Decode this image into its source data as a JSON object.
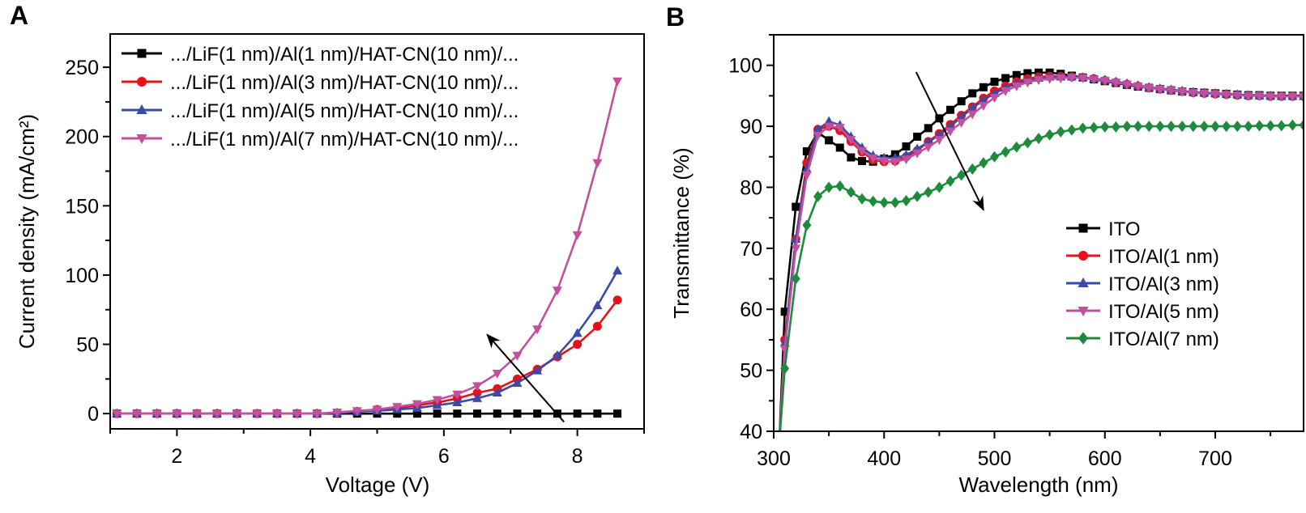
{
  "chart_data": [
    {
      "panel_label": "A",
      "type": "line",
      "xlabel": "Voltage (V)",
      "ylabel": "Current density (mA/cm²)",
      "xlim": [
        1,
        9
      ],
      "ylim": [
        -11,
        274
      ],
      "xticks": [
        2,
        4,
        6,
        8
      ],
      "yticks": [
        0,
        50,
        100,
        150,
        200,
        250
      ],
      "grid": false,
      "legend_position": "top-left",
      "x": [
        1.1,
        1.4,
        1.7,
        2.0,
        2.3,
        2.6,
        2.9,
        3.2,
        3.5,
        3.8,
        4.1,
        4.4,
        4.7,
        5.0,
        5.3,
        5.6,
        5.9,
        6.2,
        6.5,
        6.8,
        7.1,
        7.4,
        7.7,
        8.0,
        8.3,
        8.6
      ],
      "series": [
        {
          "name": ".../LiF(1 nm)/Al(1 nm)/HAT-CN(10 nm)/...",
          "color": "#000000",
          "marker": "square",
          "values": [
            0,
            0,
            0,
            0,
            0,
            0,
            0,
            0,
            0,
            0,
            0,
            0,
            0,
            0,
            0,
            0,
            0,
            0,
            0,
            0,
            0,
            0,
            0,
            0,
            0,
            0
          ]
        },
        {
          "name": ".../LiF(1 nm)/Al(3 nm)/HAT-CN(10 nm)/...",
          "color": "#e8101a",
          "marker": "circle",
          "values": [
            0,
            0,
            0,
            0,
            0,
            0,
            0,
            0,
            0,
            0,
            0,
            0.5,
            1.5,
            3,
            4,
            6,
            8,
            11,
            15,
            18,
            25,
            32,
            41,
            50,
            63,
            82
          ]
        },
        {
          "name": ".../LiF(1 nm)/Al(5 nm)/HAT-CN(10 nm)/...",
          "color": "#3a4aa8",
          "marker": "triangle-up",
          "values": [
            0,
            0,
            0,
            0,
            0,
            0,
            0,
            0,
            0,
            0,
            0,
            0.5,
            1.5,
            2,
            3,
            4,
            6,
            8,
            11,
            15,
            22,
            31,
            42,
            58,
            78,
            103
          ]
        },
        {
          "name": ".../LiF(1 nm)/Al(7 nm)/HAT-CN(10 nm)/...",
          "color": "#c2509e",
          "marker": "triangle-down",
          "values": [
            0,
            0,
            0,
            0,
            0,
            0,
            0,
            0,
            0,
            0,
            0,
            1,
            2,
            3,
            5,
            7,
            10,
            14,
            20,
            29,
            42,
            61,
            89,
            129,
            181,
            240
          ]
        }
      ],
      "arrow": {
        "from": [
          7.8,
          -6
        ],
        "to": [
          6.65,
          57
        ]
      }
    },
    {
      "panel_label": "B",
      "type": "line",
      "xlabel": "Wavelength (nm)",
      "ylabel": "Transmittance (%)",
      "xlim": [
        300,
        780
      ],
      "ylim": [
        40,
        105
      ],
      "xticks": [
        300,
        400,
        500,
        600,
        700
      ],
      "yticks": [
        40,
        50,
        60,
        70,
        80,
        90,
        100
      ],
      "grid": false,
      "legend_position": "center-right",
      "x": [
        310,
        320,
        330,
        340,
        350,
        360,
        370,
        380,
        390,
        400,
        410,
        420,
        430,
        440,
        450,
        460,
        470,
        480,
        490,
        500,
        510,
        520,
        530,
        540,
        550,
        560,
        570,
        580,
        590,
        600,
        610,
        620,
        630,
        640,
        650,
        660,
        670,
        680,
        690,
        700,
        710,
        720,
        730,
        740,
        750,
        760,
        770,
        780
      ],
      "series": [
        {
          "name": "ITO",
          "color": "#000000",
          "marker": "square",
          "values": [
            59.6,
            76.8,
            85.9,
            89.0,
            87.7,
            86.5,
            84.9,
            84.3,
            84.2,
            84.7,
            85.4,
            86.7,
            88.3,
            89.7,
            91.3,
            92.7,
            94.1,
            95.4,
            96.4,
            97.3,
            97.9,
            98.4,
            98.7,
            98.8,
            98.8,
            98.6,
            98.3,
            98.0,
            97.7,
            97.4,
            97.1,
            96.8,
            96.5,
            96.3,
            96.1,
            95.9,
            95.7,
            95.6,
            95.5,
            95.4,
            95.3,
            95.2,
            95.1,
            95.1,
            95.0,
            95.0,
            95.0,
            95.0
          ]
        },
        {
          "name": "ITO/Al(1 nm)",
          "color": "#e8101a",
          "marker": "circle",
          "values": [
            55.0,
            71.5,
            84.0,
            89.5,
            90.0,
            89.3,
            87.5,
            85.8,
            84.5,
            84.2,
            84.3,
            85.0,
            86.0,
            87.5,
            88.8,
            90.3,
            91.8,
            93.2,
            94.6,
            95.8,
            96.6,
            97.3,
            97.8,
            98.1,
            98.2,
            98.2,
            98.1,
            98.0,
            97.8,
            97.5,
            97.2,
            96.9,
            96.6,
            96.3,
            96.1,
            95.9,
            95.7,
            95.5,
            95.4,
            95.3,
            95.2,
            95.1,
            95.0,
            95.0,
            94.9,
            94.9,
            94.9,
            94.9
          ]
        },
        {
          "name": "ITO/Al(3 nm)",
          "color": "#3a4aa8",
          "marker": "triangle-up",
          "values": [
            54.5,
            71.5,
            83.0,
            89.5,
            90.8,
            90.2,
            88.3,
            86.5,
            85.2,
            84.8,
            84.8,
            85.3,
            86.3,
            87.4,
            88.6,
            90.0,
            91.5,
            93.0,
            94.3,
            95.4,
            96.3,
            97.0,
            97.5,
            97.9,
            98.1,
            98.1,
            98.1,
            98.0,
            97.8,
            97.6,
            97.3,
            97.0,
            96.7,
            96.4,
            96.2,
            96.0,
            95.8,
            95.6,
            95.5,
            95.4,
            95.3,
            95.2,
            95.1,
            95.0,
            95.0,
            94.9,
            94.9,
            94.9
          ]
        },
        {
          "name": "ITO/Al(5 nm)",
          "color": "#c2509e",
          "marker": "triangle-down",
          "values": [
            53.5,
            70.0,
            82.0,
            88.5,
            90.0,
            89.8,
            87.8,
            86.0,
            84.8,
            84.3,
            84.2,
            84.6,
            85.6,
            86.6,
            87.8,
            89.2,
            90.6,
            92.0,
            93.4,
            94.7,
            95.8,
            96.6,
            97.2,
            97.6,
            97.8,
            97.9,
            98.0,
            97.9,
            97.7,
            97.5,
            97.2,
            96.9,
            96.6,
            96.3,
            96.1,
            95.9,
            95.7,
            95.5,
            95.4,
            95.3,
            95.2,
            95.1,
            95.0,
            95.0,
            94.9,
            94.9,
            94.9,
            94.9
          ]
        },
        {
          "name": "ITO/Al(7 nm)",
          "color": "#1e8a3c",
          "marker": "diamond",
          "values": [
            50.3,
            65.0,
            73.8,
            78.5,
            80.0,
            80.2,
            79.2,
            78.1,
            77.7,
            77.5,
            77.5,
            77.8,
            78.5,
            79.2,
            80.0,
            81.0,
            82.0,
            83.0,
            84.0,
            85.0,
            85.8,
            86.6,
            87.3,
            88.0,
            88.6,
            89.1,
            89.4,
            89.7,
            89.8,
            89.9,
            89.9,
            90.0,
            90.0,
            90.0,
            90.0,
            90.0,
            90.0,
            90.0,
            90.0,
            90.0,
            90.0,
            90.0,
            90.0,
            90.1,
            90.1,
            90.1,
            90.2,
            90.2
          ]
        }
      ],
      "arrow": {
        "from": [
          429,
          98.9
        ],
        "to": [
          490,
          76.3
        ]
      }
    }
  ]
}
